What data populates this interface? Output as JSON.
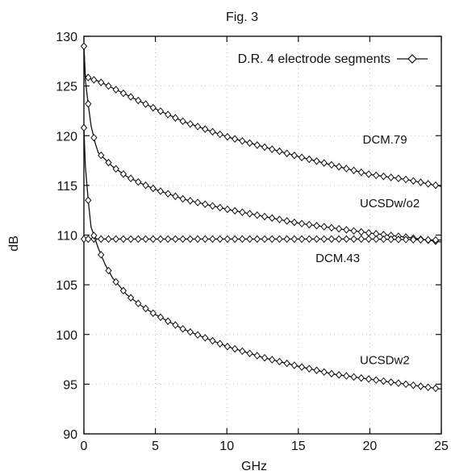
{
  "chart_data": {
    "type": "line",
    "title": "Fig. 3",
    "xlabel": "GHz",
    "ylabel": "dB",
    "xlim": [
      0,
      25
    ],
    "ylim": [
      90,
      130
    ],
    "xticks": [
      0,
      5,
      10,
      15,
      20,
      25
    ],
    "yticks": [
      90,
      95,
      100,
      105,
      110,
      115,
      120,
      125,
      130
    ],
    "grid": true,
    "legend": {
      "position": "top-right",
      "label": "D.R. 4 electrode segments",
      "marker": "diamond"
    },
    "series": [
      {
        "name": "DCM.79",
        "x": [
          0,
          0.1,
          0.5,
          1,
          2,
          3,
          5,
          7,
          10,
          12.5,
          15,
          17.5,
          20,
          22.5,
          25
        ],
        "y": [
          129,
          126,
          125.7,
          125.5,
          124.8,
          124.1,
          122.7,
          121.4,
          119.9,
          118.9,
          117.9,
          117.0,
          116.1,
          115.6,
          114.9
        ]
      },
      {
        "name": "UCSDw/o2",
        "x": [
          0,
          0.1,
          0.3,
          0.5,
          0.8,
          1,
          1.5,
          2,
          3,
          4,
          5,
          7,
          10,
          12.5,
          15,
          17.5,
          20,
          22.5,
          25
        ],
        "y": [
          129,
          125.6,
          123.2,
          121.0,
          119.2,
          118.3,
          117.6,
          116.9,
          115.9,
          115.2,
          114.6,
          113.6,
          112.6,
          111.9,
          111.2,
          110.7,
          110.2,
          109.8,
          109.3
        ]
      },
      {
        "name": "DCM.43",
        "x": [
          0,
          1,
          5,
          10,
          15,
          20,
          25
        ],
        "y": [
          109.6,
          109.6,
          109.6,
          109.6,
          109.6,
          109.6,
          109.5
        ]
      },
      {
        "name": "UCSDw2",
        "x": [
          0,
          0.1,
          0.3,
          0.5,
          1,
          1.5,
          2,
          3,
          4,
          5,
          7,
          10,
          12.5,
          15,
          17.5,
          20,
          22.5,
          25
        ],
        "y": [
          120.8,
          117.0,
          113.5,
          110.8,
          108.7,
          107.0,
          105.7,
          104.0,
          102.9,
          102.0,
          100.5,
          98.8,
          97.7,
          96.8,
          96.0,
          95.5,
          95.0,
          94.5
        ]
      }
    ],
    "series_labels": [
      {
        "text": "DCM.79",
        "series": "DCM.79"
      },
      {
        "text": "UCSDw/o2",
        "series": "UCSDw/o2"
      },
      {
        "text": "DCM.43",
        "series": "DCM.43"
      },
      {
        "text": "UCSDw2",
        "series": "UCSDw2"
      }
    ]
  }
}
